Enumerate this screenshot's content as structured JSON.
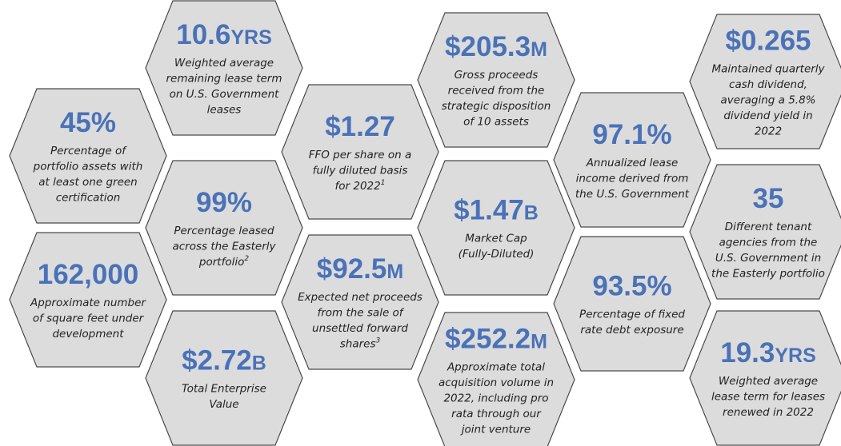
{
  "items": [
    {
      "value": "10.6",
      "unit": "YRS",
      "lines": [
        "Weighted average",
        "remaining lease term",
        "on U.S. Government",
        "leases"
      ]
    },
    {
      "value": "45%",
      "lines": [
        "Percentage of",
        "portfolio assets with",
        "at least one green",
        "certification"
      ]
    },
    {
      "value": "99%",
      "lines": [
        "Percentage leased",
        "across the Easterly",
        "portfolio"
      ],
      "footnote": "2"
    },
    {
      "value": "162,000",
      "lines": [
        "Approximate number",
        "of square feet under",
        "development"
      ]
    },
    {
      "value": "$2.72",
      "unit": "B",
      "lines": [
        "Total Enterprise",
        "Value"
      ]
    },
    {
      "value": "$1.27",
      "lines": [
        "FFO per share on a",
        "fully diluted basis",
        "for 2022"
      ],
      "footnote": "1"
    },
    {
      "value": "$92.5",
      "unit": "M",
      "lines": [
        "Expected net proceeds",
        "from the sale of",
        "unsettled forward",
        "shares"
      ],
      "footnote": "3"
    },
    {
      "value": "$205.3",
      "unit": "M",
      "lines": [
        "Gross proceeds",
        "received from the",
        "strategic disposition",
        "of 10 assets"
      ]
    },
    {
      "value": "$1.47",
      "unit": "B",
      "lines": [
        "Market Cap",
        "(Fully-Diluted)"
      ]
    },
    {
      "value": "$252.2",
      "unit": "M",
      "lines": [
        "Approximate total",
        "acquisition volume in",
        "2022, including pro",
        "rata through our",
        "joint venture"
      ]
    },
    {
      "value": "97.1%",
      "lines": [
        "Annualized lease",
        "income derived from",
        "the U.S. Government"
      ]
    },
    {
      "value": "93.5%",
      "lines": [
        "Percentage of fixed",
        "rate debt exposure"
      ]
    },
    {
      "value": "$0.265",
      "lines": [
        "Maintained quarterly",
        "cash dividend,",
        "averaging a 5.8%",
        "dividend yield in",
        "2022"
      ]
    },
    {
      "value": "35",
      "lines": [
        "Different tenant",
        "agencies from the",
        "U.S. Government in",
        "the Easterly portfolio"
      ]
    },
    {
      "value": "19.3",
      "unit": "YRS",
      "lines": [
        "Weighted average",
        "lease term for leases",
        "renewed in 2022"
      ]
    }
  ]
}
